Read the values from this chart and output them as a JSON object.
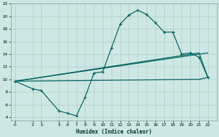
{
  "xlabel": "Humidex (Indice chaleur)",
  "bg_color": "#cde8e4",
  "grid_color": "#b0c8c4",
  "line_color": "#006060",
  "xlim": [
    -0.5,
    23
  ],
  "ylim": [
    3.5,
    22
  ],
  "xticks": [
    0,
    2,
    3,
    5,
    6,
    7,
    8,
    9,
    10,
    11,
    12,
    13,
    14,
    15,
    16,
    17,
    18,
    19,
    20,
    21,
    22
  ],
  "yticks": [
    4,
    6,
    8,
    10,
    12,
    14,
    16,
    18,
    20,
    22
  ],
  "curve1_x": [
    0,
    2,
    3,
    5,
    6,
    7,
    8,
    9,
    10,
    11,
    12,
    13,
    14,
    15,
    16,
    17,
    18,
    19,
    20,
    21,
    22
  ],
  "curve1_y": [
    9.7,
    8.5,
    8.2,
    5.0,
    4.6,
    4.2,
    7.2,
    11.0,
    11.2,
    15.0,
    18.8,
    20.2,
    21.0,
    20.3,
    19.0,
    17.5,
    17.5,
    14.0,
    14.2,
    13.5,
    10.3
  ],
  "curve2_x": [
    0,
    22
  ],
  "curve2_y": [
    9.7,
    14.2
  ],
  "curve3_x": [
    0,
    21,
    22
  ],
  "curve3_y": [
    9.7,
    14.2,
    10.3
  ],
  "curve4_x": [
    0,
    21,
    22
  ],
  "curve4_y": [
    9.7,
    10.0,
    10.3
  ]
}
